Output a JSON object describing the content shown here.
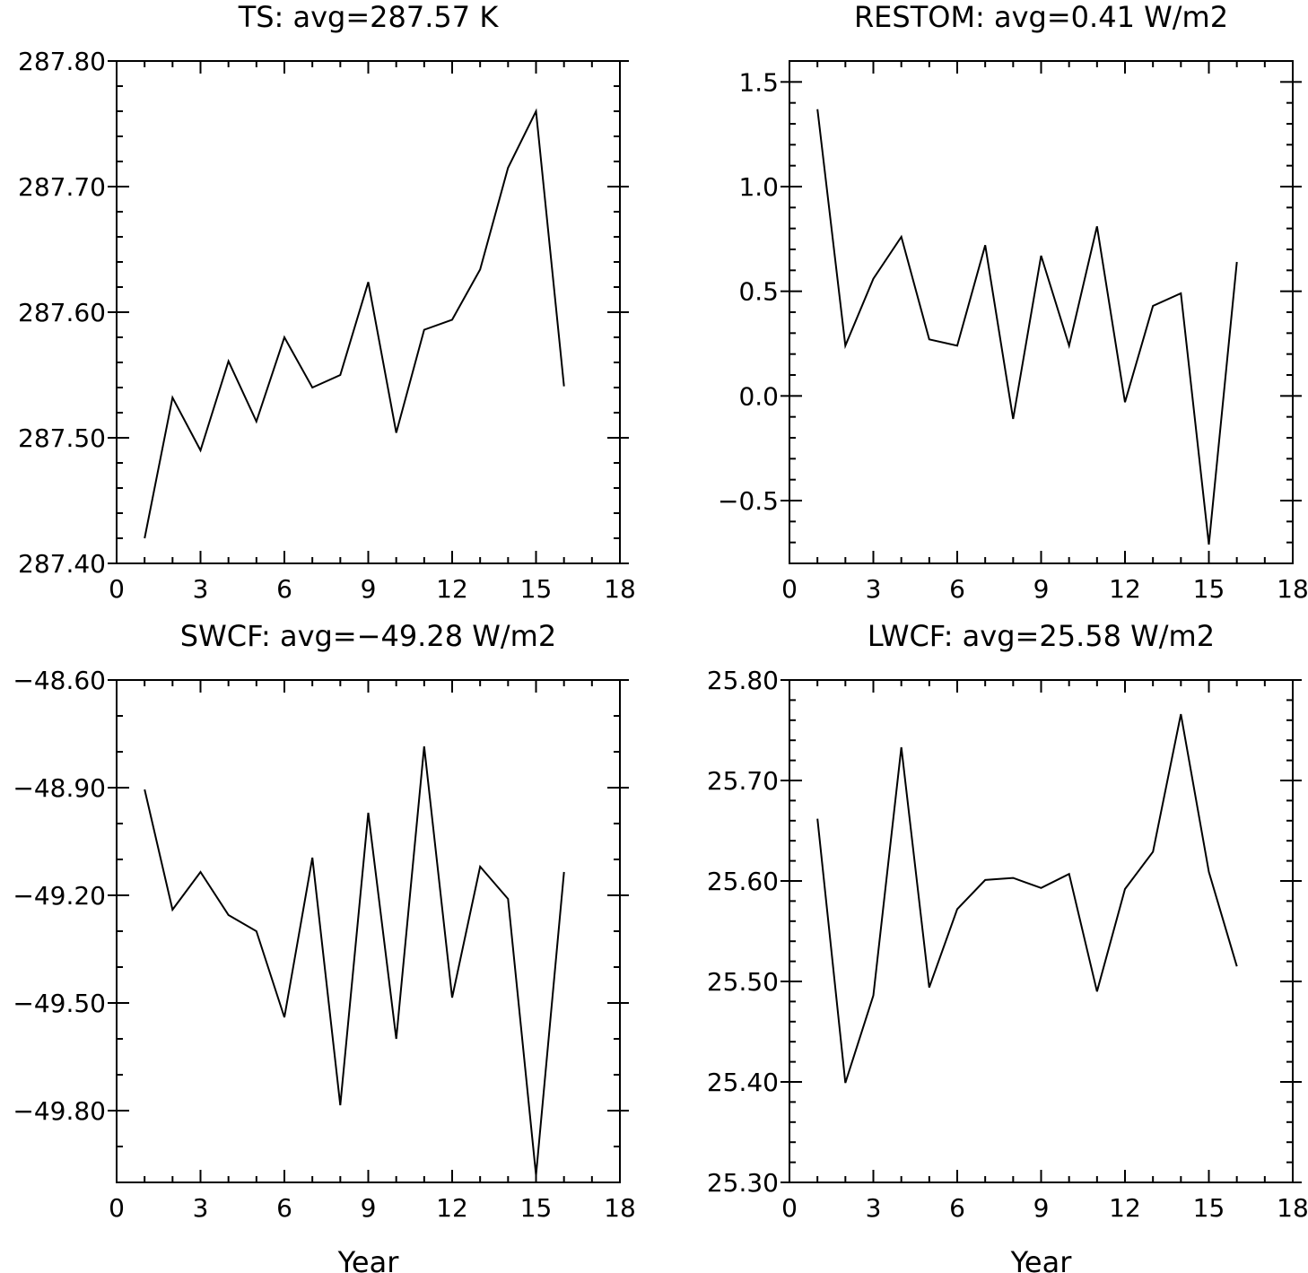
{
  "chart_data": [
    {
      "type": "line",
      "title": "TS: avg=287.57 K",
      "xlabel": "",
      "ylabel": "",
      "xlim": [
        0,
        18
      ],
      "ylim": [
        287.4,
        287.8
      ],
      "xticks": [
        0,
        3,
        6,
        9,
        12,
        15,
        18
      ],
      "xtick_labels": [
        "0",
        "3",
        "6",
        "9",
        "12",
        "15",
        "18"
      ],
      "yticks": [
        287.4,
        287.5,
        287.6,
        287.7,
        287.8
      ],
      "ytick_labels": [
        "287.40",
        "287.50",
        "287.60",
        "287.70",
        "287.80"
      ],
      "y_minor_step": 0.02,
      "grid": false,
      "series": [
        {
          "x": [
            1,
            2,
            3,
            4,
            5,
            6,
            7,
            8,
            9,
            10,
            11,
            12,
            13,
            14,
            15,
            16
          ],
          "y": [
            287.42,
            287.532,
            287.49,
            287.561,
            287.513,
            287.58,
            287.54,
            287.55,
            287.624,
            287.504,
            287.586,
            287.594,
            287.634,
            287.715,
            287.76,
            287.541
          ]
        }
      ]
    },
    {
      "type": "line",
      "title": "RESTOM: avg=0.41 W/m2",
      "xlabel": "",
      "ylabel": "",
      "xlim": [
        0,
        18
      ],
      "ylim": [
        -0.8,
        1.6
      ],
      "xticks": [
        0,
        3,
        6,
        9,
        12,
        15,
        18
      ],
      "xtick_labels": [
        "0",
        "3",
        "6",
        "9",
        "12",
        "15",
        "18"
      ],
      "yticks": [
        -0.5,
        0.0,
        0.5,
        1.0,
        1.5
      ],
      "ytick_labels": [
        "−0.5",
        "0.0",
        "0.5",
        "1.0",
        "1.5"
      ],
      "y_minor_step": 0.1,
      "grid": false,
      "series": [
        {
          "x": [
            1,
            2,
            3,
            4,
            5,
            6,
            7,
            8,
            9,
            10,
            11,
            12,
            13,
            14,
            15,
            16
          ],
          "y": [
            1.37,
            0.24,
            0.56,
            0.76,
            0.27,
            0.24,
            0.72,
            -0.11,
            0.67,
            0.24,
            0.81,
            -0.03,
            0.43,
            0.49,
            -0.71,
            0.64
          ]
        }
      ]
    },
    {
      "type": "line",
      "title": "SWCF: avg=−49.28 W/m2",
      "xlabel": "Year",
      "ylabel": "",
      "xlim": [
        0,
        18
      ],
      "ylim": [
        -50.0,
        -48.6
      ],
      "xticks": [
        0,
        3,
        6,
        9,
        12,
        15,
        18
      ],
      "xtick_labels": [
        "0",
        "3",
        "6",
        "9",
        "12",
        "15",
        "18"
      ],
      "yticks": [
        -49.8,
        -49.5,
        -49.2,
        -48.9,
        -48.6
      ],
      "ytick_labels": [
        "−49.80",
        "−49.50",
        "−49.20",
        "−48.90",
        "−48.60"
      ],
      "y_minor_step": 0.1,
      "grid": false,
      "series": [
        {
          "x": [
            1,
            2,
            3,
            4,
            5,
            6,
            7,
            8,
            9,
            10,
            11,
            12,
            13,
            14,
            15,
            16
          ],
          "y": [
            -48.905,
            -49.24,
            -49.135,
            -49.255,
            -49.3,
            -49.54,
            -49.095,
            -49.785,
            -48.97,
            -49.6,
            -48.785,
            -49.485,
            -49.12,
            -49.21,
            -49.98,
            -49.135
          ]
        }
      ]
    },
    {
      "type": "line",
      "title": "LWCF: avg=25.58 W/m2",
      "xlabel": "Year",
      "ylabel": "",
      "xlim": [
        0,
        18
      ],
      "ylim": [
        25.3,
        25.8
      ],
      "xticks": [
        0,
        3,
        6,
        9,
        12,
        15,
        18
      ],
      "xtick_labels": [
        "0",
        "3",
        "6",
        "9",
        "12",
        "15",
        "18"
      ],
      "yticks": [
        25.3,
        25.4,
        25.5,
        25.6,
        25.7,
        25.8
      ],
      "ytick_labels": [
        "25.30",
        "25.40",
        "25.50",
        "25.60",
        "25.70",
        "25.80"
      ],
      "y_minor_step": 0.02,
      "grid": false,
      "series": [
        {
          "x": [
            1,
            2,
            3,
            4,
            5,
            6,
            7,
            8,
            9,
            10,
            11,
            12,
            13,
            14,
            15,
            16
          ],
          "y": [
            25.662,
            25.399,
            25.486,
            25.733,
            25.494,
            25.572,
            25.601,
            25.603,
            25.593,
            25.607,
            25.49,
            25.592,
            25.629,
            25.766,
            25.609,
            25.515
          ]
        }
      ]
    }
  ]
}
